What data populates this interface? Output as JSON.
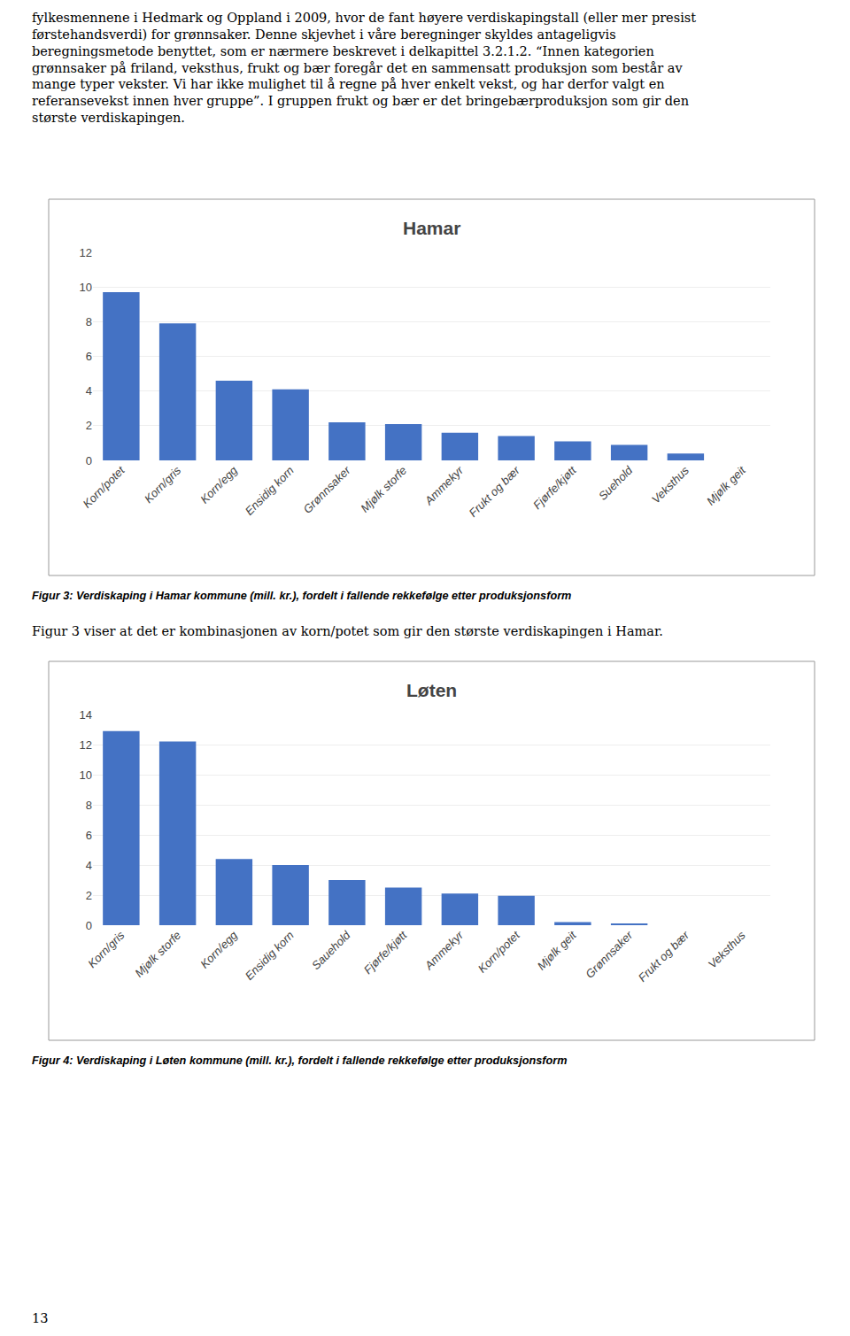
{
  "chart_data": [
    {
      "type": "bar",
      "title": "Hamar",
      "categories": [
        "Korn/potet",
        "Korn/gris",
        "Korn/egg",
        "Ensidig korn",
        "Grønnsaker",
        "Mjølk storfe",
        "Ammekyr",
        "Frukt og bær",
        "Fjørfe/kjøtt",
        "Suehold",
        "Veksthus",
        "Mjølk geit"
      ],
      "values": [
        9.7,
        7.9,
        4.6,
        4.1,
        2.2,
        2.1,
        1.6,
        1.4,
        1.1,
        0.9,
        0.4,
        0.0
      ],
      "color": "#4472C4",
      "ylim": [
        0,
        12
      ],
      "yticks": [
        0,
        2,
        4,
        6,
        8,
        10,
        12
      ],
      "grid": true,
      "annotations": [
        "fylkesmennene i Hedmark og Oppland i 2009, hvor de fant høyere verdiskapingstall (eller mer presist\nførstehandsverdi) for grønnsaker. Denne skjevhet i våre beregninger skyldes antageligvis\nberegningsmetode benyttet, som er nærmere beskrevet i delkapittel 3.2.1.2. “Innen kategorien\ngrønnsaker på friland, veksthus, frukt og bær foregår det en sammensatt produksjon som består av\nmange typer vekster. Vi har ikke mulighet til å regne på hver enkelt vekst, og har derfor valgt en\nreferansevekst innen hver gruppe”. I gruppen frukt og bær er det bringebærproduksjon som gir den\nstørste verdiskapingen.",
        "Figur 3: Verdiskaping i Hamar kommune (mill. kr.), fordelt i fallende rekkefølge etter produksjonsform",
        "Figur 3 viser at det er kombinasjonen av korn/potet som gir den største verdiskapingen i Hamar."
      ]
    },
    {
      "type": "bar",
      "title": "Løten",
      "categories": [
        "Korn/gris",
        "Mjølk storfe",
        "Korn/egg",
        "Ensidig korn",
        "Sauehold",
        "Fjørfe/kjøtt",
        "Ammekyr",
        "Korn/potet",
        "Mjølk geit",
        "Grønnsaker",
        "Frukt og bær",
        "Veksthus"
      ],
      "values": [
        12.9,
        12.2,
        4.4,
        4.0,
        3.0,
        2.5,
        2.1,
        1.95,
        0.2,
        0.1,
        0.0,
        0.0
      ],
      "color": "#4472C4",
      "ylim": [
        0,
        14
      ],
      "yticks": [
        0,
        2,
        4,
        6,
        8,
        10,
        12,
        14
      ],
      "grid": true,
      "annotations": [
        "Figur 4: Verdiskaping i Løten kommune (mill. kr.), fordelt i fallende rekkefølge etter produksjonsform",
        "13"
      ]
    }
  ]
}
